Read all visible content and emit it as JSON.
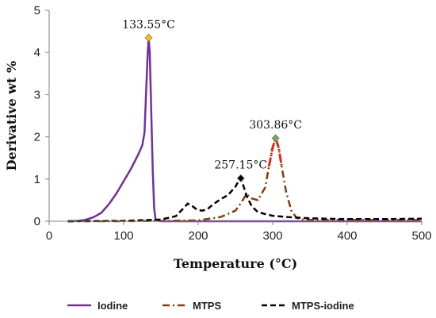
{
  "chart_data": {
    "type": "line",
    "title": "",
    "xlabel": "Temperature (°C)",
    "ylabel": "Derivative wt %",
    "xlim": [
      0,
      500
    ],
    "ylim": [
      0,
      5
    ],
    "xticks": [
      0,
      100,
      200,
      300,
      400,
      500
    ],
    "yticks": [
      0,
      1,
      2,
      3,
      4,
      5
    ],
    "grid": false,
    "legend": "bottom",
    "series": [
      {
        "name": "Iodine",
        "color": "#7030A0",
        "dash": "solid",
        "x": [
          25,
          40,
          50,
          60,
          70,
          80,
          90,
          100,
          110,
          120,
          125,
          128,
          130,
          132,
          133.55,
          135,
          137,
          139,
          141,
          143,
          150,
          200,
          300,
          400,
          500
        ],
        "y": [
          0.0,
          0.01,
          0.04,
          0.1,
          0.2,
          0.4,
          0.65,
          0.95,
          1.25,
          1.6,
          1.8,
          2.1,
          3.0,
          3.9,
          4.35,
          4.0,
          2.6,
          1.2,
          0.3,
          0.02,
          0.0,
          0.0,
          0.0,
          0.0,
          0.0
        ]
      },
      {
        "name": "MTPS",
        "color": "#843C0C",
        "dash": "dashdot",
        "x": [
          25,
          100,
          200,
          230,
          250,
          258,
          265,
          270,
          280,
          290,
          295,
          300,
          303.86,
          308,
          312,
          318,
          325,
          332,
          340,
          360,
          400,
          450,
          500
        ],
        "y": [
          0.0,
          0.0,
          0.02,
          0.1,
          0.25,
          0.45,
          0.65,
          0.55,
          0.5,
          0.8,
          1.3,
          1.75,
          1.97,
          1.75,
          1.3,
          0.7,
          0.25,
          0.08,
          0.04,
          0.03,
          0.03,
          0.03,
          0.03
        ]
      },
      {
        "name": "MTPS-iodine",
        "color": "#000000",
        "dash": "dash",
        "x": [
          25,
          100,
          150,
          170,
          180,
          186,
          192,
          198,
          205,
          212,
          220,
          230,
          240,
          250,
          255,
          257.15,
          260,
          265,
          272,
          280,
          290,
          300,
          320,
          350,
          400,
          450,
          500
        ],
        "y": [
          0.0,
          0.01,
          0.04,
          0.12,
          0.3,
          0.42,
          0.36,
          0.28,
          0.25,
          0.28,
          0.4,
          0.52,
          0.62,
          0.82,
          0.98,
          1.02,
          0.88,
          0.6,
          0.35,
          0.22,
          0.17,
          0.13,
          0.1,
          0.07,
          0.05,
          0.05,
          0.06
        ]
      }
    ],
    "highlight_segment": {
      "series": "MTPS",
      "color": "#E8261A",
      "x_from": 292,
      "x_to": 316
    },
    "annotations": [
      {
        "text": "133.55°C",
        "x": 133.55,
        "y": 4.35,
        "marker_color": "#FFC000",
        "series": "Iodine"
      },
      {
        "text": "257.15°C",
        "x": 257.15,
        "y": 1.02,
        "marker_color": "#000000",
        "series": "MTPS-iodine"
      },
      {
        "text": "303.86°C",
        "x": 303.86,
        "y": 1.97,
        "marker_color": "#70AD47",
        "series": "MTPS"
      }
    ]
  }
}
